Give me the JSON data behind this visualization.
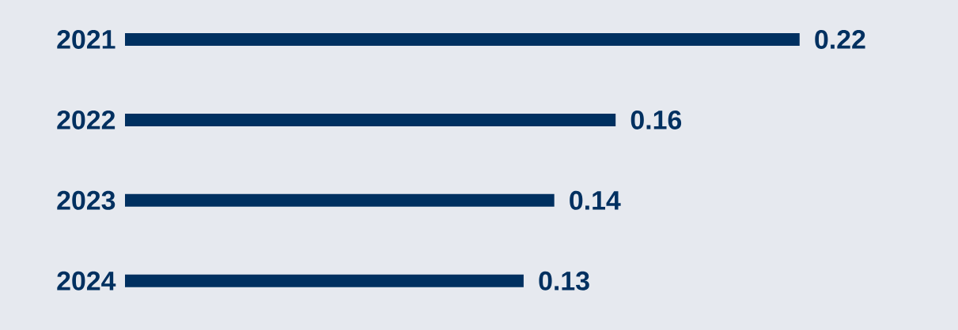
{
  "chart_data": {
    "type": "bar",
    "orientation": "horizontal",
    "categories": [
      "2021",
      "2022",
      "2023",
      "2024"
    ],
    "values": [
      0.22,
      0.16,
      0.14,
      0.13
    ],
    "color": "#003060",
    "data_labels": true
  }
}
